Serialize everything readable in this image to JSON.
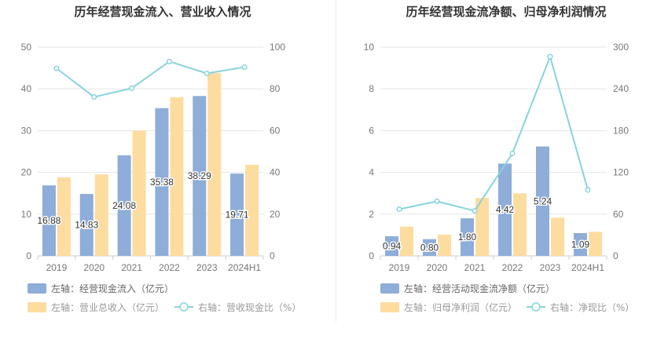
{
  "chart_data": [
    {
      "type": "bar",
      "title": "历年经营现金流入、营业收入情况",
      "categories": [
        "2019",
        "2020",
        "2021",
        "2022",
        "2023",
        "2024H1"
      ],
      "ylim_left": [
        0,
        50
      ],
      "left_ticks": [
        "0",
        "10",
        "20",
        "30",
        "40",
        "50"
      ],
      "ylim_right": [
        0,
        100
      ],
      "right_ticks": [
        "0",
        "20",
        "40",
        "60",
        "80",
        "100"
      ],
      "series": [
        {
          "name": "左轴：经营现金流入（亿元）",
          "axis": "left",
          "kind": "bar",
          "color": "#8eadd8",
          "values": [
            16.88,
            14.83,
            24.08,
            35.38,
            38.29,
            19.71
          ],
          "labels": [
            "16.88",
            "14.83",
            "24.08",
            "35.38",
            "38.29",
            "19.71"
          ]
        },
        {
          "name": "左轴：营业总收入（亿元）",
          "axis": "left",
          "kind": "bar",
          "color": "#fddca0",
          "values": [
            18.8,
            19.5,
            30.0,
            38.0,
            43.8,
            21.8
          ]
        },
        {
          "name": "右轴：营收现金比（%）",
          "axis": "right",
          "kind": "line",
          "color": "#88d3dc",
          "values": [
            89.8,
            76.1,
            80.3,
            93.1,
            87.4,
            90.4
          ]
        }
      ],
      "grid": true
    },
    {
      "type": "bar",
      "title": "历年经营现金流净额、归母净利润情况",
      "categories": [
        "2019",
        "2020",
        "2021",
        "2022",
        "2023",
        "2024H1"
      ],
      "ylim_left": [
        0,
        10
      ],
      "left_ticks": [
        "0",
        "2",
        "4",
        "6",
        "8",
        "10"
      ],
      "ylim_right": [
        0,
        300
      ],
      "right_ticks": [
        "0",
        "60",
        "120",
        "180",
        "240",
        "300"
      ],
      "series": [
        {
          "name": "左轴：经营活动现金流净额（亿元）",
          "axis": "left",
          "kind": "bar",
          "color": "#8eadd8",
          "values": [
            0.94,
            0.8,
            1.8,
            4.42,
            5.24,
            1.09
          ],
          "labels": [
            "0.94",
            "0.80",
            "1.80",
            "4.42",
            "5.24",
            "1.09"
          ]
        },
        {
          "name": "左轴：归母净利润（亿元）",
          "axis": "left",
          "kind": "bar",
          "color": "#fddca0",
          "values": [
            1.4,
            1.02,
            2.78,
            3.0,
            1.83,
            1.15
          ]
        },
        {
          "name": "右轴：净现比（%）",
          "axis": "right",
          "kind": "line",
          "color": "#88d3dc",
          "values": [
            67.1,
            78.4,
            64.7,
            147.3,
            286.3,
            94.8
          ]
        }
      ],
      "grid": true
    }
  ]
}
